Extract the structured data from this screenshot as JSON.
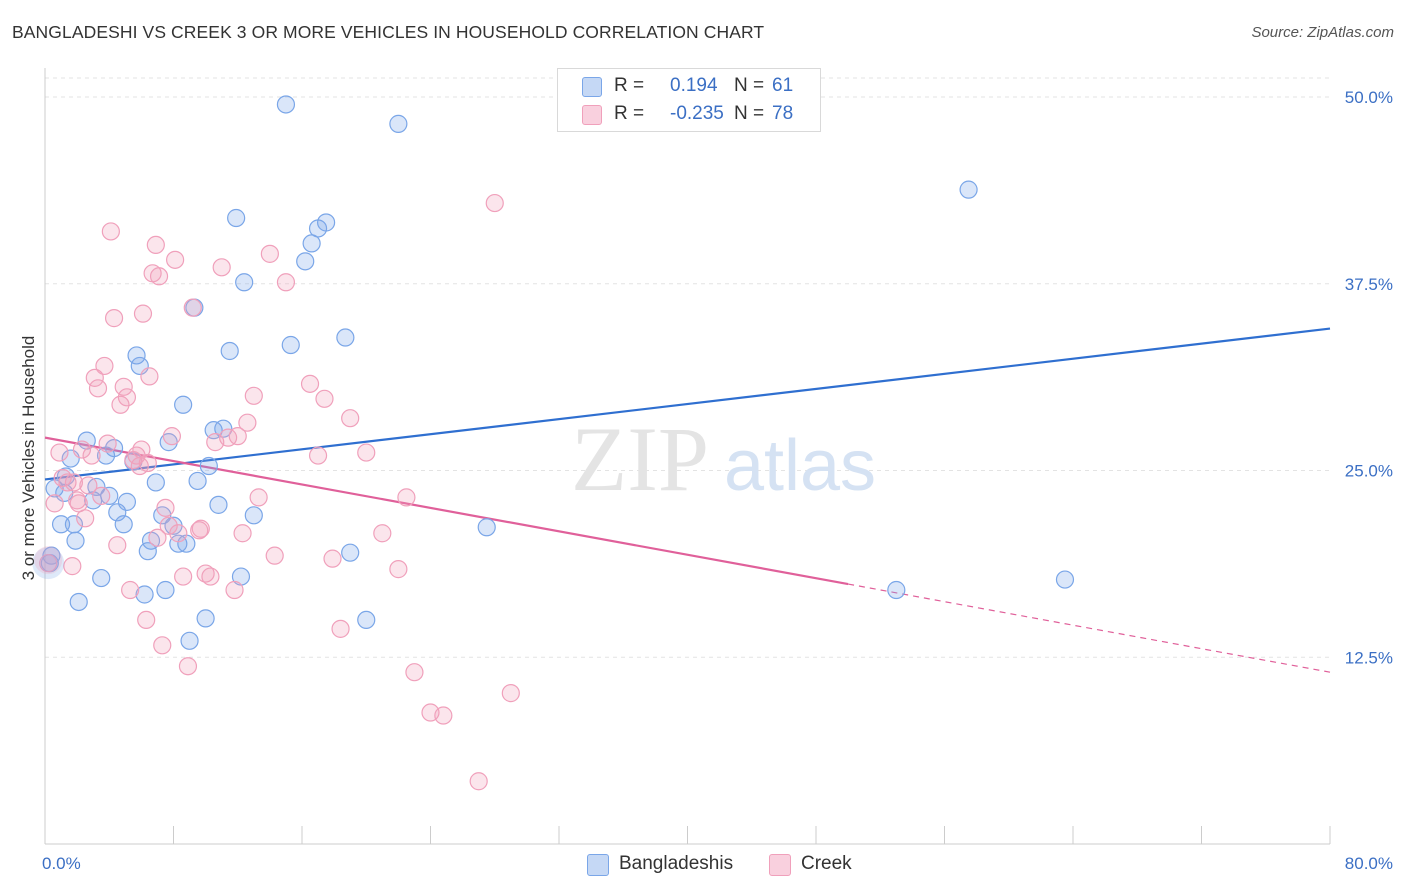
{
  "title": "BANGLADESHI VS CREEK 3 OR MORE VEHICLES IN HOUSEHOLD CORRELATION CHART",
  "source": "Source: ZipAtlas.com",
  "watermark": {
    "zip": "ZIP",
    "atlas": "atlas"
  },
  "legend": {
    "rows": [
      {
        "r_label": "R =",
        "r_value": "0.194",
        "n_label": "N =",
        "n_value": "61",
        "color": "#7aa6e8"
      },
      {
        "r_label": "R =",
        "r_value": "-0.235",
        "n_label": "N =",
        "n_value": "78",
        "color": "#f0a0bb"
      }
    ]
  },
  "bottom_legend": [
    {
      "label": "Bangladeshis",
      "color": "#7aa6e8"
    },
    {
      "label": "Creek",
      "color": "#f0a0bb"
    }
  ],
  "chart_data": {
    "type": "scatter",
    "title": "BANGLADESHI VS CREEK 3 OR MORE VEHICLES IN HOUSEHOLD CORRELATION CHART",
    "xlabel": "",
    "ylabel": "3 or more Vehicles in Household",
    "xlim": [
      0,
      80
    ],
    "ylim": [
      0,
      50
    ],
    "x_tick_labels": [
      "0.0%",
      "80.0%"
    ],
    "y_ticks": [
      12.5,
      25.0,
      37.5,
      50.0
    ],
    "y_tick_labels": [
      "12.5%",
      "25.0%",
      "37.5%",
      "50.0%"
    ],
    "grid": true,
    "legend_position": "top-center",
    "series": [
      {
        "name": "Bangladeshis",
        "color": "#7aa6e8",
        "line_color": "#2f6fd0",
        "trend": {
          "x": [
            0,
            80
          ],
          "y": [
            24.4,
            34.5
          ]
        },
        "points": [
          [
            0.3,
            18.8
          ],
          [
            0.4,
            19.3
          ],
          [
            0.6,
            23.8
          ],
          [
            1.0,
            21.4
          ],
          [
            1.3,
            24.6
          ],
          [
            1.6,
            25.8
          ],
          [
            1.8,
            21.4
          ],
          [
            1.9,
            20.3
          ],
          [
            2.1,
            16.2
          ],
          [
            2.6,
            27.0
          ],
          [
            3.0,
            23.0
          ],
          [
            3.2,
            23.9
          ],
          [
            3.5,
            17.8
          ],
          [
            3.8,
            26.0
          ],
          [
            4.0,
            23.3
          ],
          [
            4.3,
            26.5
          ],
          [
            4.5,
            22.2
          ],
          [
            4.9,
            21.4
          ],
          [
            5.1,
            22.9
          ],
          [
            5.5,
            25.6
          ],
          [
            5.7,
            32.7
          ],
          [
            5.9,
            32.0
          ],
          [
            6.2,
            16.7
          ],
          [
            6.4,
            19.6
          ],
          [
            6.6,
            20.3
          ],
          [
            6.9,
            24.2
          ],
          [
            7.3,
            22.0
          ],
          [
            7.5,
            17.0
          ],
          [
            7.7,
            26.9
          ],
          [
            8.0,
            21.3
          ],
          [
            8.3,
            20.1
          ],
          [
            8.6,
            29.4
          ],
          [
            8.8,
            20.1
          ],
          [
            9.0,
            13.6
          ],
          [
            9.3,
            35.9
          ],
          [
            9.5,
            24.3
          ],
          [
            10.0,
            15.1
          ],
          [
            10.2,
            25.3
          ],
          [
            10.5,
            27.7
          ],
          [
            10.8,
            22.7
          ],
          [
            11.1,
            27.8
          ],
          [
            11.5,
            33.0
          ],
          [
            11.9,
            41.9
          ],
          [
            12.2,
            17.9
          ],
          [
            12.4,
            37.6
          ],
          [
            13.0,
            22.0
          ],
          [
            15.0,
            49.5
          ],
          [
            15.3,
            33.4
          ],
          [
            16.2,
            39.0
          ],
          [
            16.6,
            40.2
          ],
          [
            17.0,
            41.2
          ],
          [
            17.5,
            41.6
          ],
          [
            18.7,
            33.9
          ],
          [
            19.0,
            19.5
          ],
          [
            20.0,
            15.0
          ],
          [
            22.0,
            48.2
          ],
          [
            27.5,
            21.2
          ],
          [
            53.0,
            17.0
          ],
          [
            57.5,
            43.8
          ],
          [
            63.5,
            17.7
          ],
          [
            1.2,
            23.5
          ]
        ]
      },
      {
        "name": "Creek",
        "color": "#f0a0bb",
        "line_color": "#e0609a",
        "trend": {
          "x": [
            0,
            50
          ],
          "y": [
            27.2,
            17.4
          ]
        },
        "trend_ext": {
          "x": [
            50,
            80
          ],
          "y": [
            17.4,
            11.5
          ]
        },
        "points": [
          [
            0.2,
            18.8
          ],
          [
            0.6,
            22.8
          ],
          [
            0.9,
            26.2
          ],
          [
            1.1,
            24.5
          ],
          [
            1.4,
            24.2
          ],
          [
            1.7,
            18.6
          ],
          [
            2.1,
            22.8
          ],
          [
            2.3,
            26.4
          ],
          [
            2.5,
            21.8
          ],
          [
            2.7,
            24.0
          ],
          [
            2.9,
            26.0
          ],
          [
            3.1,
            31.2
          ],
          [
            3.3,
            30.5
          ],
          [
            3.5,
            23.3
          ],
          [
            3.7,
            32.0
          ],
          [
            3.9,
            26.8
          ],
          [
            4.1,
            41.0
          ],
          [
            4.3,
            35.2
          ],
          [
            4.5,
            20.0
          ],
          [
            4.7,
            29.4
          ],
          [
            4.9,
            30.6
          ],
          [
            5.1,
            29.9
          ],
          [
            5.3,
            17.0
          ],
          [
            5.5,
            25.7
          ],
          [
            5.7,
            26.0
          ],
          [
            5.9,
            25.3
          ],
          [
            6.1,
            35.5
          ],
          [
            6.3,
            15.0
          ],
          [
            6.5,
            31.3
          ],
          [
            6.7,
            38.2
          ],
          [
            6.9,
            40.1
          ],
          [
            7.1,
            38.0
          ],
          [
            7.3,
            13.3
          ],
          [
            7.5,
            22.5
          ],
          [
            7.7,
            21.3
          ],
          [
            7.9,
            27.3
          ],
          [
            8.1,
            39.1
          ],
          [
            8.3,
            20.8
          ],
          [
            8.6,
            17.9
          ],
          [
            8.9,
            11.9
          ],
          [
            9.2,
            35.9
          ],
          [
            9.6,
            21.0
          ],
          [
            10.0,
            18.1
          ],
          [
            10.3,
            17.9
          ],
          [
            10.6,
            26.9
          ],
          [
            11.0,
            38.6
          ],
          [
            11.4,
            27.2
          ],
          [
            11.8,
            17.0
          ],
          [
            12.3,
            20.8
          ],
          [
            12.6,
            28.2
          ],
          [
            13.0,
            30.0
          ],
          [
            14.0,
            39.5
          ],
          [
            14.3,
            19.3
          ],
          [
            15.0,
            37.6
          ],
          [
            16.5,
            30.8
          ],
          [
            17.0,
            26.0
          ],
          [
            17.4,
            29.8
          ],
          [
            17.9,
            19.1
          ],
          [
            18.4,
            14.4
          ],
          [
            19.0,
            28.5
          ],
          [
            20.0,
            26.2
          ],
          [
            21.0,
            20.8
          ],
          [
            22.0,
            18.4
          ],
          [
            22.5,
            23.2
          ],
          [
            23.0,
            11.5
          ],
          [
            24.0,
            8.8
          ],
          [
            24.8,
            8.6
          ],
          [
            28.0,
            42.9
          ],
          [
            29.0,
            10.1
          ],
          [
            27.0,
            4.2
          ],
          [
            1.8,
            24.2
          ],
          [
            2.0,
            23.0
          ],
          [
            6.0,
            26.4
          ],
          [
            7.0,
            20.5
          ],
          [
            12.0,
            27.3
          ],
          [
            13.3,
            23.2
          ],
          [
            9.7,
            21.1
          ],
          [
            6.4,
            25.5
          ]
        ]
      }
    ]
  }
}
